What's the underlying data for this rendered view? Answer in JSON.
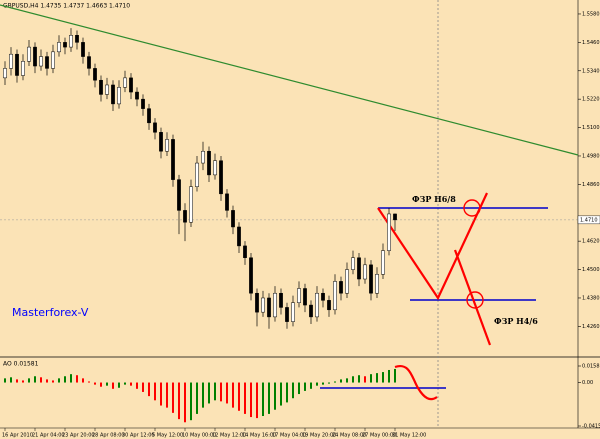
{
  "chart_data": [
    {
      "type": "candlestick",
      "title": "GBPUSD,H4  1.4735 1.4737 1.4663 1.4710",
      "categories": [
        "16 Apr 2010",
        null,
        null,
        null,
        null,
        "21 Apr 04:00",
        null,
        null,
        null,
        null,
        "23 Apr 20:00",
        null,
        null,
        null,
        null,
        "28 Apr 08:00",
        null,
        null,
        null,
        null,
        "30 Apr 12:00",
        null,
        null,
        null,
        null,
        "5 May 12:00",
        null,
        null,
        null,
        null,
        "10 May 00:00",
        null,
        null,
        null,
        null,
        "12 May 12:00",
        null,
        null,
        null,
        null,
        "14 May 16:00",
        null,
        null,
        null,
        null,
        "17 May 04:00",
        null,
        null,
        null,
        null,
        "19 May 20:00",
        null,
        null,
        null,
        null,
        "24 May 08:00",
        null,
        null,
        null,
        null,
        "27 May 00:00",
        null,
        null,
        null,
        null,
        "31 May 12:00"
      ],
      "open": [
        1.531,
        1.535,
        1.541,
        1.532,
        1.538,
        1.544,
        1.536,
        1.54,
        1.535,
        1.542,
        1.546,
        1.544,
        1.549,
        1.546,
        1.54,
        1.535,
        1.53,
        1.524,
        1.528,
        1.52,
        1.527,
        1.531,
        1.525,
        1.522,
        1.518,
        1.512,
        1.508,
        1.5,
        1.505,
        1.488,
        1.475,
        1.47,
        1.485,
        1.495,
        1.5,
        1.49,
        1.496,
        1.482,
        1.475,
        1.468,
        1.46,
        1.455,
        1.44,
        1.432,
        1.438,
        1.43,
        1.44,
        1.434,
        1.428,
        1.436,
        1.442,
        1.435,
        1.43,
        1.44,
        1.437,
        1.433,
        1.445,
        1.44,
        1.45,
        1.455,
        1.446,
        1.452,
        1.44,
        1.448,
        1.458,
        1.4735
      ],
      "high": [
        1.538,
        1.544,
        1.543,
        1.541,
        1.547,
        1.546,
        1.543,
        1.542,
        1.545,
        1.549,
        1.548,
        1.552,
        1.551,
        1.548,
        1.542,
        1.537,
        1.532,
        1.531,
        1.53,
        1.53,
        1.534,
        1.533,
        1.527,
        1.524,
        1.52,
        1.514,
        1.51,
        1.508,
        1.507,
        1.49,
        1.478,
        1.488,
        1.498,
        1.504,
        1.502,
        1.499,
        1.498,
        1.484,
        1.477,
        1.47,
        1.462,
        1.457,
        1.442,
        1.441,
        1.44,
        1.443,
        1.442,
        1.436,
        1.439,
        1.445,
        1.444,
        1.437,
        1.443,
        1.442,
        1.439,
        1.448,
        1.447,
        1.453,
        1.458,
        1.457,
        1.455,
        1.454,
        1.451,
        1.461,
        1.476,
        1.4737
      ],
      "low": [
        1.528,
        1.532,
        1.529,
        1.53,
        1.536,
        1.533,
        1.534,
        1.532,
        1.533,
        1.54,
        1.541,
        1.542,
        1.543,
        1.537,
        1.532,
        1.527,
        1.521,
        1.522,
        1.517,
        1.518,
        1.525,
        1.522,
        1.519,
        1.515,
        1.509,
        1.505,
        1.497,
        1.498,
        1.485,
        1.465,
        1.462,
        1.468,
        1.483,
        1.492,
        1.487,
        1.488,
        1.479,
        1.472,
        1.465,
        1.457,
        1.452,
        1.437,
        1.426,
        1.43,
        1.425,
        1.428,
        1.431,
        1.425,
        1.426,
        1.434,
        1.432,
        1.427,
        1.428,
        1.434,
        1.43,
        1.431,
        1.437,
        1.438,
        1.448,
        1.443,
        1.444,
        1.437,
        1.438,
        1.446,
        1.456,
        1.4663
      ],
      "close": [
        1.535,
        1.541,
        1.532,
        1.538,
        1.544,
        1.536,
        1.54,
        1.535,
        1.542,
        1.546,
        1.544,
        1.549,
        1.546,
        1.54,
        1.535,
        1.53,
        1.524,
        1.528,
        1.52,
        1.527,
        1.531,
        1.525,
        1.522,
        1.518,
        1.512,
        1.508,
        1.5,
        1.505,
        1.488,
        1.475,
        1.47,
        1.485,
        1.495,
        1.5,
        1.49,
        1.496,
        1.482,
        1.475,
        1.468,
        1.46,
        1.455,
        1.44,
        1.432,
        1.438,
        1.43,
        1.44,
        1.434,
        1.428,
        1.436,
        1.442,
        1.435,
        1.43,
        1.44,
        1.437,
        1.433,
        1.445,
        1.44,
        1.45,
        1.455,
        1.446,
        1.452,
        1.44,
        1.448,
        1.458,
        1.4735,
        1.471
      ],
      "up_color": "#ffffff",
      "down_color": "#000000",
      "ylim": [
        1.4139,
        1.5639
      ],
      "yticks": [
        {
          "value": 1.558,
          "label": "1.5580"
        },
        {
          "value": 1.546,
          "label": "1.5460"
        },
        {
          "value": 1.534,
          "label": "1.5340"
        },
        {
          "value": 1.522,
          "label": "1.5220"
        },
        {
          "value": 1.51,
          "label": "1.5100"
        },
        {
          "value": 1.498,
          "label": "1.4980"
        },
        {
          "value": 1.486,
          "label": "1.4860"
        },
        {
          "value": 1.462,
          "label": "1.4620"
        },
        {
          "value": 1.45,
          "label": "1.4500"
        },
        {
          "value": 1.438,
          "label": "1.4380"
        },
        {
          "value": 1.426,
          "label": "1.4260"
        }
      ],
      "last_price": {
        "value": 1.471,
        "label": "1.4710"
      },
      "annotations": {
        "watermark": "Masterforex-V",
        "upper_level": "ФЗР Н6/8",
        "lower_level": "ФЗР Н4/6"
      }
    },
    {
      "type": "bar",
      "title": "AO 0.01581",
      "values": [
        0.004,
        0.005,
        0.003,
        0.002,
        0.004,
        0.006,
        0.005,
        0.003,
        0.002,
        0.004,
        0.006,
        0.008,
        0.007,
        0.004,
        0.001,
        -0.002,
        -0.004,
        -0.003,
        -0.006,
        -0.005,
        -0.002,
        -0.003,
        -0.006,
        -0.009,
        -0.013,
        -0.017,
        -0.022,
        -0.024,
        -0.029,
        -0.035,
        -0.038,
        -0.036,
        -0.03,
        -0.024,
        -0.02,
        -0.017,
        -0.018,
        -0.02,
        -0.024,
        -0.027,
        -0.03,
        -0.033,
        -0.034,
        -0.032,
        -0.03,
        -0.026,
        -0.022,
        -0.019,
        -0.015,
        -0.011,
        -0.008,
        -0.006,
        -0.003,
        -0.002,
        -0.001,
        0.001,
        0.003,
        0.004,
        0.006,
        0.007,
        0.006,
        0.008,
        0.009,
        0.01,
        0.012,
        0.013
      ],
      "up_color": "#008000",
      "down_color": "#ff0000",
      "ylim": [
        -0.04156,
        0.01581
      ],
      "yticks": [
        {
          "value": 0.01581,
          "label": "0.01581"
        },
        {
          "value": 0,
          "label": "0.00"
        },
        {
          "value": -0.04156,
          "label": "-0.04156"
        }
      ]
    }
  ]
}
